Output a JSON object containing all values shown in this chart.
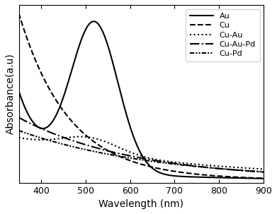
{
  "xlabel": "Wavelength (nm)",
  "ylabel": "Absorbance(a.u)",
  "xlim": [
    350,
    900
  ],
  "x_ticks": [
    400,
    500,
    600,
    700,
    800,
    900
  ],
  "background_color": "#ffffff",
  "legend_entries": [
    "Au",
    "Cu",
    "Cu-Au",
    "Cu-Au-Pd",
    "Cu-Pd"
  ],
  "line_colors": [
    "black",
    "black",
    "black",
    "black",
    "black"
  ],
  "line_widths": [
    1.5,
    1.5,
    1.5,
    1.5,
    1.5
  ]
}
